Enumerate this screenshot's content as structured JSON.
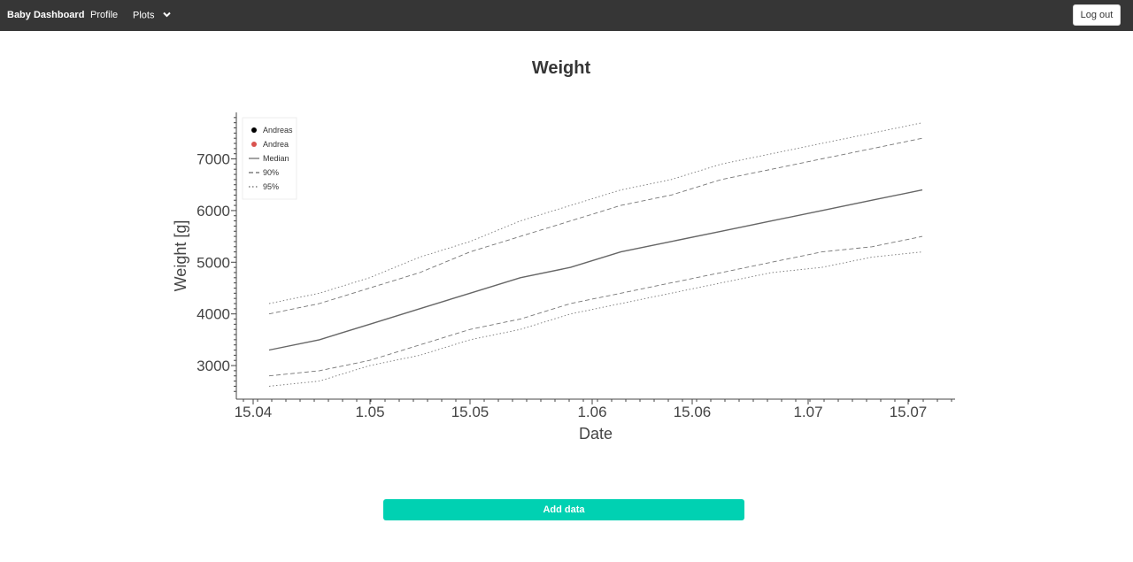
{
  "navbar": {
    "brand": "Baby Dashboard",
    "links": [
      {
        "label": "Profile"
      },
      {
        "label": "Plots",
        "icon": "chevron-down-icon"
      }
    ],
    "logout_label": "Log out"
  },
  "page": {
    "title": "Weight",
    "add_data_label": "Add data"
  },
  "colors": {
    "navbar_bg": "#363636",
    "accent": "#00d1b2",
    "andreas": "#000000",
    "andrea": "#d9534f",
    "percentile_lines": "#666666"
  },
  "chart_data": {
    "type": "line",
    "xlabel": "Date",
    "ylabel": "Weight [g]",
    "x_ticks": [
      "15.04",
      "1.05",
      "15.05",
      "1.06",
      "15.06",
      "1.07",
      "15.07"
    ],
    "y_ticks": [
      3000,
      4000,
      5000,
      6000,
      7000
    ],
    "ylim": [
      2350,
      7900
    ],
    "grid": false,
    "legend_position": "top-left",
    "legend": [
      {
        "label": "Andreas",
        "marker": "dot",
        "color": "#000000"
      },
      {
        "label": "Andrea",
        "marker": "dot",
        "color": "#d9534f"
      },
      {
        "label": "Median",
        "style": "solid"
      },
      {
        "label": "90%",
        "style": "dashed"
      },
      {
        "label": "95%",
        "style": "dotted"
      }
    ],
    "x": [
      "15.04",
      "22.04",
      "29.04",
      "06.05",
      "13.05",
      "20.05",
      "27.05",
      "03.06",
      "10.06",
      "17.06",
      "24.06",
      "01.07",
      "08.07",
      "15.07"
    ],
    "series": [
      {
        "name": "Median",
        "style": "solid",
        "values": [
          3300,
          3500,
          3800,
          4100,
          4400,
          4700,
          4900,
          5200,
          5400,
          5600,
          5800,
          6000,
          6200,
          6400
        ]
      },
      {
        "name": "90%",
        "style": "dashed",
        "band": "upper",
        "values": [
          4000,
          4200,
          4500,
          4800,
          5200,
          5500,
          5800,
          6100,
          6300,
          6600,
          6800,
          7000,
          7200,
          7400
        ]
      },
      {
        "name": "90%",
        "style": "dashed",
        "band": "lower",
        "values": [
          2800,
          2900,
          3100,
          3400,
          3700,
          3900,
          4200,
          4400,
          4600,
          4800,
          5000,
          5200,
          5300,
          5500
        ]
      },
      {
        "name": "95%",
        "style": "dotted",
        "band": "upper",
        "values": [
          4200,
          4400,
          4700,
          5100,
          5400,
          5800,
          6100,
          6400,
          6600,
          6900,
          7100,
          7300,
          7500,
          7700
        ]
      },
      {
        "name": "95%",
        "style": "dotted",
        "band": "lower",
        "values": [
          2600,
          2700,
          3000,
          3200,
          3500,
          3700,
          4000,
          4200,
          4400,
          4600,
          4800,
          4900,
          5100,
          5200
        ]
      }
    ]
  }
}
